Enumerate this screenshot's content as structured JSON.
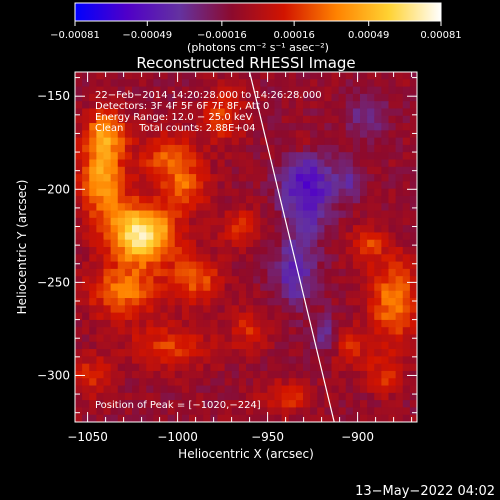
{
  "chart_data": {
    "type": "heatmap",
    "title": "Reconstructed RHESSI Image",
    "xlabel": "Heliocentric X (arcsec)",
    "ylabel": "Heliocentric Y (arcsec)",
    "xlim": [
      -1057,
      -867
    ],
    "ylim": [
      -325,
      -137
    ],
    "xticks": [
      -1050,
      -1000,
      -950,
      -900
    ],
    "xtick_labels": [
      "−1050",
      "−1000",
      "−950",
      "−900"
    ],
    "yticks": [
      -300,
      -250,
      -200,
      -150
    ],
    "ytick_labels": [
      "−300",
      "−250",
      "−200",
      "−150"
    ],
    "colorbar": {
      "min": -0.00081,
      "max": 0.00081,
      "ticks": [
        -0.00081,
        -0.00049,
        -0.00016,
        0.00016,
        0.00049,
        0.00081
      ],
      "tick_labels": [
        "−0.00081",
        "−0.00049",
        "−0.00016",
        "0.00016",
        "0.00049",
        "0.00081"
      ],
      "unit_label": "(photons cm⁻² s⁻¹ asec⁻²)",
      "colors": [
        "#0000ff",
        "#5000c8",
        "#6432a0",
        "#8c0a2d",
        "#d21400",
        "#ff8200",
        "#ffd232",
        "#ffffff"
      ]
    },
    "annotations": [
      "22−Feb−2014 14:20:28.000 to 14:26:28.000",
      "Detectors: 3F 4F 5F 6F 7F 8F, Att 0",
      "Energy Range: 12.0 − 25.0 keV",
      "Clean     Total counts: 2.88E+04"
    ],
    "peak_label": "Position of Peak = [−1020,−224]",
    "peak": [
      -1020,
      -224
    ],
    "limb_line": [
      [
        -960,
        -137
      ],
      [
        -913,
        -325
      ]
    ],
    "sources": [
      {
        "x": -1020,
        "y": -224,
        "sx": 13,
        "sy": 11,
        "amp": 1.0
      },
      {
        "x": -1042,
        "y": -195,
        "sx": 9,
        "sy": 14,
        "amp": 0.65
      },
      {
        "x": -1040,
        "y": -170,
        "sx": 8,
        "sy": 9,
        "amp": 0.55
      },
      {
        "x": -1005,
        "y": -183,
        "sx": 11,
        "sy": 9,
        "amp": 0.45
      },
      {
        "x": -1030,
        "y": -255,
        "sx": 14,
        "sy": 10,
        "amp": 0.5
      },
      {
        "x": -995,
        "y": -200,
        "sx": 9,
        "sy": 8,
        "amp": 0.4
      },
      {
        "x": -990,
        "y": -248,
        "sx": 10,
        "sy": 9,
        "amp": 0.42
      },
      {
        "x": -975,
        "y": -160,
        "sx": 8,
        "sy": 10,
        "amp": 0.38
      },
      {
        "x": -965,
        "y": -220,
        "sx": 8,
        "sy": 7,
        "amp": 0.3
      },
      {
        "x": -1005,
        "y": -285,
        "sx": 16,
        "sy": 8,
        "amp": 0.35
      },
      {
        "x": -1048,
        "y": -300,
        "sx": 8,
        "sy": 8,
        "amp": 0.3
      },
      {
        "x": -940,
        "y": -312,
        "sx": 10,
        "sy": 6,
        "amp": 0.32
      },
      {
        "x": -880,
        "y": -260,
        "sx": 9,
        "sy": 16,
        "amp": 0.55
      },
      {
        "x": -895,
        "y": -230,
        "sx": 7,
        "sy": 7,
        "amp": 0.35
      },
      {
        "x": -905,
        "y": -285,
        "sx": 8,
        "sy": 8,
        "amp": 0.3
      },
      {
        "x": -930,
        "y": -175,
        "sx": 6,
        "sy": 6,
        "amp": 0.22
      },
      {
        "x": -960,
        "y": -275,
        "sx": 8,
        "sy": 8,
        "amp": 0.28
      },
      {
        "x": -885,
        "y": -300,
        "sx": 7,
        "sy": 7,
        "amp": 0.3
      },
      {
        "x": -928,
        "y": -200,
        "sx": 10,
        "sy": 16,
        "amp": -0.55
      },
      {
        "x": -935,
        "y": -245,
        "sx": 8,
        "sy": 12,
        "amp": -0.4
      },
      {
        "x": -918,
        "y": -280,
        "sx": 6,
        "sy": 8,
        "amp": -0.3
      },
      {
        "x": -895,
        "y": -160,
        "sx": 8,
        "sy": 8,
        "amp": -0.25
      },
      {
        "x": -905,
        "y": -195,
        "sx": 6,
        "sy": 8,
        "amp": -0.25
      }
    ],
    "base_level": -0.12
  },
  "footer": {
    "timestamp": "13−May−2022 04:02"
  }
}
